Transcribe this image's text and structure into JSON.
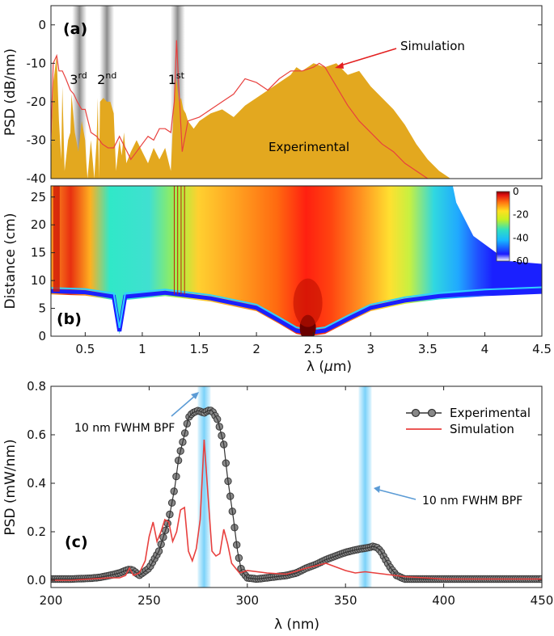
{
  "chart_data": [
    {
      "type": "area",
      "panel_label": "(a)",
      "ylabel": "PSD (dB/nm)",
      "xlim": [
        0.2,
        4.5
      ],
      "ylim": [
        -40,
        5
      ],
      "yticks": [
        0,
        -10,
        -20,
        -30,
        -40
      ],
      "order_labels": [
        {
          "base": "3",
          "sup": "rd",
          "x": 0.45
        },
        {
          "base": "2",
          "sup": "nd",
          "x": 0.69
        },
        {
          "base": "1",
          "sup": "st",
          "x": 1.31
        }
      ],
      "filter_bands_um": [
        0.45,
        0.69,
        1.31
      ],
      "annotations": {
        "simulation": "Simulation",
        "experimental": "Experimental"
      },
      "series": [
        {
          "name": "Experimental",
          "color": "#e3a81f",
          "x": [
            0.2,
            0.22,
            0.25,
            0.27,
            0.29,
            0.3,
            0.32,
            0.35,
            0.37,
            0.38,
            0.41,
            0.44,
            0.47,
            0.5,
            0.51,
            0.52,
            0.55,
            0.58,
            0.6,
            0.61,
            0.62,
            0.63,
            0.66,
            0.69,
            0.72,
            0.75,
            0.77,
            0.8,
            0.82,
            0.84,
            0.86,
            0.9,
            0.95,
            1.0,
            1.05,
            1.1,
            1.15,
            1.2,
            1.25,
            1.28,
            1.3,
            1.32,
            1.34,
            1.36,
            1.38,
            1.4,
            1.45,
            1.5,
            1.6,
            1.7,
            1.8,
            1.9,
            2.0,
            2.1,
            2.2,
            2.3,
            2.35,
            2.4,
            2.5,
            2.6,
            2.7,
            2.8,
            2.9,
            3.0,
            3.1,
            3.2,
            3.3,
            3.4,
            3.5,
            3.6,
            3.7,
            3.72
          ],
          "y": [
            -35,
            -15,
            -8,
            -25,
            -35,
            -16,
            -38,
            -30,
            -28,
            -18,
            -28,
            -33,
            -25,
            -30,
            -36,
            -40,
            -30,
            -40,
            -30,
            -19,
            -40,
            -20,
            -19,
            -20,
            -20,
            -23,
            -38,
            -30,
            -34,
            -28,
            -36,
            -33,
            -30,
            -33,
            -36,
            -32,
            -35,
            -32,
            -38,
            -18,
            -14,
            -20,
            -19,
            -22,
            -23,
            -25,
            -27,
            -25,
            -23,
            -22,
            -24,
            -21,
            -19,
            -17,
            -15,
            -13,
            -11,
            -12,
            -10,
            -11,
            -10,
            -13,
            -12,
            -16,
            -19,
            -22,
            -26,
            -31,
            -35,
            -38,
            -40,
            -40
          ]
        },
        {
          "name": "Simulation",
          "color": "#e8403e",
          "x": [
            0.2,
            0.22,
            0.25,
            0.27,
            0.3,
            0.33,
            0.37,
            0.4,
            0.43,
            0.47,
            0.5,
            0.55,
            0.6,
            0.65,
            0.7,
            0.75,
            0.8,
            0.85,
            0.9,
            0.95,
            1.0,
            1.05,
            1.1,
            1.15,
            1.2,
            1.25,
            1.28,
            1.3,
            1.32,
            1.35,
            1.4,
            1.5,
            1.6,
            1.7,
            1.8,
            1.9,
            2.0,
            2.1,
            2.2,
            2.3,
            2.4,
            2.5,
            2.55,
            2.6,
            2.7,
            2.8,
            2.9,
            3.0,
            3.1,
            3.2,
            3.3,
            3.4,
            3.5
          ],
          "y": [
            -30,
            -10,
            -8,
            -12,
            -12,
            -14,
            -17,
            -18,
            -20,
            -22,
            -22,
            -28,
            -29,
            -31,
            -32,
            -32,
            -29,
            -32,
            -35,
            -33,
            -31,
            -29,
            -30,
            -27,
            -27,
            -28,
            -20,
            -4,
            -16,
            -33,
            -25,
            -24,
            -22,
            -20,
            -18,
            -14,
            -15,
            -17,
            -14,
            -12,
            -12,
            -11,
            -10,
            -11,
            -16,
            -21,
            -25,
            -28,
            -31,
            -33,
            -36,
            -38,
            -40
          ]
        }
      ]
    },
    {
      "type": "heatmap",
      "panel_label": "(b)",
      "xlabel_base": "λ (",
      "xlabel_mu": "μ",
      "xlabel_end": "m)",
      "ylabel": "Distance (cm)",
      "xlim": [
        0.2,
        4.5
      ],
      "ylim": [
        0,
        27
      ],
      "xticks": [
        0.5,
        1,
        1.5,
        2,
        2.5,
        3,
        3.5,
        4,
        4.5
      ],
      "xtick_labels": [
        "0.5",
        "1",
        "1.5",
        "2",
        "2.5",
        "3",
        "3.5",
        "4",
        "4.5"
      ],
      "yticks": [
        0,
        5,
        10,
        15,
        20,
        25
      ],
      "colorbar": {
        "min": -60,
        "max": 0,
        "ticks": [
          0,
          -20,
          -40,
          -60
        ]
      }
    },
    {
      "type": "line",
      "panel_label": "(c)",
      "xlabel": "λ (nm)",
      "ylabel": "PSD (mW/nm)",
      "xlim": [
        200,
        450
      ],
      "ylim": [
        -0.03,
        0.8
      ],
      "xticks": [
        200,
        250,
        300,
        350,
        400,
        450
      ],
      "yticks": [
        0.0,
        0.2,
        0.4,
        0.6,
        0.8
      ],
      "ytick_labels": [
        "0.0",
        "0.2",
        "0.4",
        "0.6",
        "0.8"
      ],
      "filter_centers_nm": [
        278,
        360
      ],
      "annotation_text": "10 nm FWHM BPF",
      "series": [
        {
          "name": "Experimental",
          "color": "#555555",
          "x": [
            200,
            210,
            220,
            225,
            230,
            235,
            238,
            240,
            242,
            245,
            250,
            255,
            260,
            263,
            265,
            268,
            270,
            272,
            275,
            278,
            280,
            282,
            285,
            288,
            290,
            293,
            295,
            297,
            300,
            305,
            310,
            315,
            320,
            325,
            330,
            335,
            340,
            345,
            350,
            355,
            358,
            360,
            362,
            364,
            366,
            368,
            370,
            373,
            376,
            380,
            385,
            390,
            400,
            410,
            420,
            430,
            440,
            450
          ],
          "x_note": "wavelength nm",
          "y": [
            0.005,
            0.005,
            0.008,
            0.012,
            0.02,
            0.03,
            0.04,
            0.045,
            0.04,
            0.02,
            0.05,
            0.12,
            0.25,
            0.38,
            0.5,
            0.6,
            0.67,
            0.69,
            0.7,
            0.69,
            0.7,
            0.7,
            0.66,
            0.56,
            0.42,
            0.25,
            0.12,
            0.04,
            0.01,
            0.005,
            0.01,
            0.015,
            0.02,
            0.03,
            0.05,
            0.065,
            0.085,
            0.1,
            0.115,
            0.125,
            0.13,
            0.132,
            0.135,
            0.14,
            0.135,
            0.12,
            0.09,
            0.05,
            0.02,
            0.005,
            0.005,
            0.005,
            0.005,
            0.005,
            0.005,
            0.005,
            0.005,
            0.005
          ]
        },
        {
          "name": "Simulation",
          "color": "#e8403e",
          "x": [
            200,
            210,
            220,
            230,
            235,
            238,
            240,
            242,
            245,
            248,
            250,
            252,
            254,
            256,
            258,
            260,
            262,
            264,
            266,
            268,
            270,
            272,
            274,
            276,
            278,
            280,
            282,
            284,
            286,
            288,
            290,
            292,
            294,
            296,
            300,
            310,
            320,
            330,
            340,
            345,
            350,
            355,
            360,
            365,
            370,
            380,
            390,
            400,
            410,
            420,
            430,
            440,
            450
          ],
          "y": [
            0.0,
            0.0,
            0.005,
            0.01,
            0.01,
            0.02,
            0.05,
            0.02,
            0.03,
            0.08,
            0.18,
            0.24,
            0.16,
            0.2,
            0.25,
            0.24,
            0.16,
            0.2,
            0.29,
            0.3,
            0.12,
            0.08,
            0.13,
            0.25,
            0.58,
            0.35,
            0.12,
            0.1,
            0.11,
            0.21,
            0.15,
            0.07,
            0.05,
            0.03,
            0.04,
            0.03,
            0.025,
            0.05,
            0.07,
            0.055,
            0.04,
            0.03,
            0.035,
            0.03,
            0.025,
            0.015,
            0.01,
            0.005,
            0.005,
            0.005,
            0.005,
            0.005,
            0.005
          ]
        }
      ],
      "legend": [
        {
          "label": "Experimental",
          "marker": "circle-line"
        },
        {
          "label": "Simulation",
          "marker": "line"
        }
      ]
    }
  ]
}
